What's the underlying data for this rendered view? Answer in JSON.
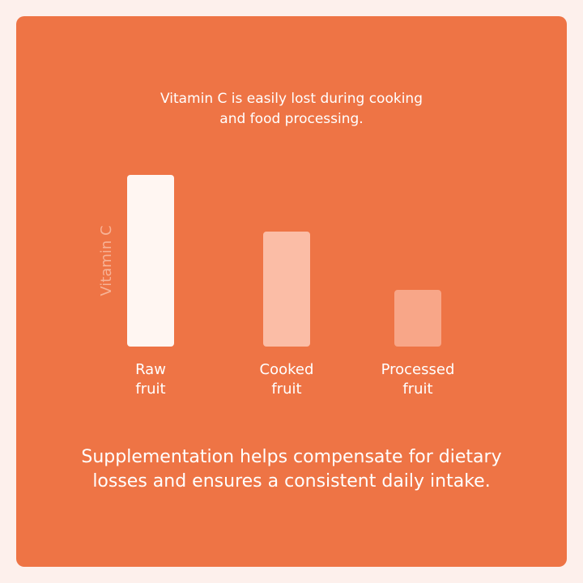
{
  "colors": {
    "page_background": "#fdf0ec",
    "card_background": "#ee7445",
    "bar_raw": "#fff6f2",
    "bar_cooked": "#fbbda6",
    "bar_processed": "#f8a688",
    "axis_label": "#f7b296",
    "text": "#ffffff"
  },
  "header": {
    "subtitle": "Vitamin C is easily lost during cooking\nand food processing."
  },
  "chart_data": {
    "type": "bar",
    "ylabel": "Vitamin C",
    "categories": [
      "Raw\nfruit",
      "Cooked\nfruit",
      "Processed\nfruit"
    ],
    "values": [
      100,
      67,
      33
    ],
    "ylim": [
      0,
      100
    ],
    "grid": false
  },
  "footer": {
    "text": "Supplementation helps compensate for dietary\nlosses and ensures a consistent daily intake."
  }
}
